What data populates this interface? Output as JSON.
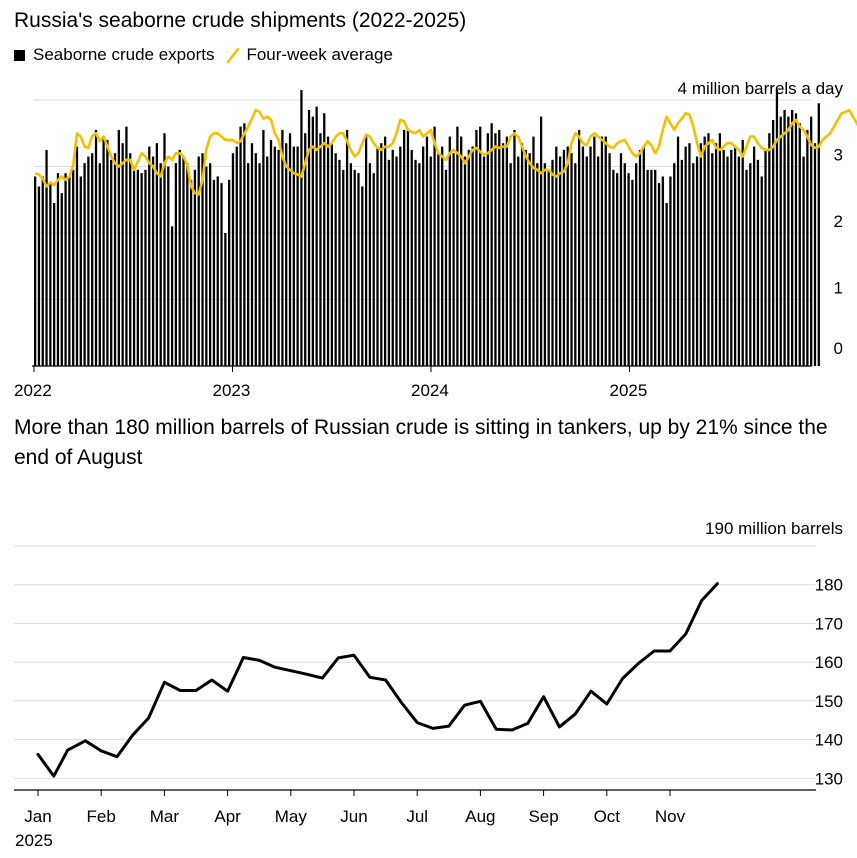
{
  "chart_data": [
    {
      "type": "bar",
      "title": "Russia's seaborne crude shipments (2022-2025)",
      "legend": {
        "bar_label": "Seaborne crude exports",
        "line_label": "Four-week average"
      },
      "unit_label": "4 million barrels a day",
      "ylim": [
        0,
        4
      ],
      "yticks": [
        "0",
        "1",
        "2",
        "3"
      ],
      "xticks": [
        "2022",
        "2023",
        "2024",
        "2025"
      ],
      "colors": {
        "bars": "#000000",
        "average": "#f5c000",
        "grid": "#dddddd"
      },
      "x_start": 2022.0,
      "weekly_values": [
        2.85,
        2.7,
        2.85,
        3.25,
        2.75,
        2.45,
        2.9,
        2.6,
        2.9,
        2.85,
        2.95,
        3.3,
        2.85,
        3.05,
        3.15,
        3.2,
        3.55,
        3.05,
        3.45,
        3.4,
        3.1,
        3.2,
        3.55,
        3.35,
        3.6,
        3.2,
        3.0,
        2.95,
        2.9,
        2.95,
        3.3,
        3.15,
        3.35,
        3.05,
        3.5,
        3.0,
        2.1,
        3.05,
        3.25,
        3.15,
        3.05,
        2.8,
        2.95,
        3.15,
        3.2,
        3.0,
        3.05,
        2.8,
        2.85,
        2.75,
        2.0,
        2.8,
        3.2,
        3.3,
        3.6,
        3.65,
        3.05,
        3.35,
        3.2,
        3.05,
        3.55,
        3.15,
        3.4,
        3.3,
        3.25,
        3.55,
        3.35,
        3.5,
        3.3,
        3.3,
        4.15,
        3.5,
        3.85,
        3.75,
        3.9,
        3.5,
        3.8,
        3.45,
        3.35,
        3.2,
        3.1,
        2.95,
        3.55,
        3.05,
        2.95,
        2.9,
        2.7,
        3.45,
        3.05,
        2.9,
        3.3,
        3.35,
        3.45,
        3.1,
        3.25,
        3.15,
        3.3,
        3.55,
        3.55,
        3.25,
        3.1,
        3.05,
        3.3,
        3.45,
        3.15,
        3.6,
        3.2,
        3.3,
        2.95,
        3.45,
        3.2,
        3.6,
        3.45,
        3.15,
        3.25,
        3.3,
        3.55,
        3.6,
        3.15,
        3.5,
        3.65,
        3.5,
        3.55,
        3.35,
        3.45,
        3.05,
        3.55,
        3.15,
        3.35,
        3.25,
        3.2,
        3.45,
        3.05,
        3.75,
        3.05,
        2.95,
        3.1,
        3.3,
        3.15,
        3.25,
        3.3,
        3.2,
        3.05,
        3.55,
        3.3,
        3.15,
        3.3,
        3.45,
        3.15,
        3.45,
        3.45,
        3.2,
        2.95,
        2.9,
        3.2,
        3.05,
        2.9,
        2.8,
        3.05,
        3.25,
        3.3,
        2.95,
        2.95,
        2.95,
        2.75,
        2.85,
        2.45,
        2.85,
        3.05,
        3.45,
        3.1,
        3.3,
        3.35,
        3.05,
        3.15,
        3.35,
        3.45,
        3.5,
        3.2,
        3.35,
        3.5,
        3.25,
        3.15,
        3.25,
        3.3,
        3.15,
        3.4,
        2.95,
        3.05,
        3.3,
        3.1,
        2.85,
        3.25,
        3.5,
        3.7,
        4.15,
        3.75,
        3.85,
        3.75,
        3.85,
        3.8,
        3.65,
        3.15,
        3.55,
        3.75,
        3.35,
        3.95
      ],
      "four_week_average": [
        2.9,
        2.88,
        2.82,
        2.7,
        2.76,
        2.72,
        2.8,
        2.85,
        2.8,
        2.85,
        3.02,
        3.5,
        3.45,
        3.3,
        3.28,
        3.46,
        3.5,
        3.38,
        3.45,
        3.3,
        3.15,
        3.05,
        3.0,
        3.05,
        3.1,
        3.1,
        2.95,
        3.08,
        3.2,
        3.15,
        3.05,
        3.0,
        2.9,
        2.85,
        3.05,
        3.15,
        3.1,
        3.2,
        3.2,
        3.15,
        3.02,
        2.7,
        2.6,
        2.58,
        2.8,
        3.25,
        3.45,
        3.5,
        3.5,
        3.45,
        3.4,
        3.4,
        3.4,
        3.35,
        3.38,
        3.5,
        3.6,
        3.72,
        3.85,
        3.82,
        3.72,
        3.75,
        3.7,
        3.5,
        3.4,
        3.15,
        3.0,
        2.95,
        2.9,
        2.88,
        2.85,
        3.05,
        3.25,
        3.3,
        3.25,
        3.3,
        3.35,
        3.3,
        3.35,
        3.45,
        3.5,
        3.5,
        3.38,
        3.25,
        3.15,
        3.2,
        3.35,
        3.48,
        3.45,
        3.35,
        3.28,
        3.25,
        3.3,
        3.3,
        3.35,
        3.5,
        3.7,
        3.68,
        3.55,
        3.52,
        3.5,
        3.55,
        3.45,
        3.5,
        3.55,
        3.35,
        3.2,
        3.15,
        3.1,
        3.2,
        3.25,
        3.2,
        3.15,
        3.05,
        3.15,
        3.25,
        3.28,
        3.22,
        3.18,
        3.2,
        3.25,
        3.3,
        3.28,
        3.3,
        3.3,
        3.45,
        3.5,
        3.45,
        3.3,
        3.15,
        3.05,
        2.98,
        2.95,
        2.9,
        2.95,
        2.95,
        2.88,
        2.85,
        2.9,
        2.92,
        3.05,
        3.35,
        3.5,
        3.45,
        3.35,
        3.32,
        3.45,
        3.5,
        3.45,
        3.4,
        3.35,
        3.3,
        3.28,
        3.35,
        3.38,
        3.4,
        3.3,
        3.2,
        3.15,
        3.2,
        3.3,
        3.38,
        3.32,
        3.2,
        3.3,
        3.55,
        3.75,
        3.65,
        3.55,
        3.65,
        3.72,
        3.8,
        3.78,
        3.6,
        3.35,
        3.15,
        3.3,
        3.35,
        3.4,
        3.28,
        3.25,
        3.3,
        3.35,
        3.35,
        3.3,
        3.25,
        3.15,
        3.3,
        3.45,
        3.45,
        3.35,
        3.28,
        3.25,
        3.25,
        3.3,
        3.4,
        3.45,
        3.5,
        3.55,
        3.65,
        3.7,
        3.6,
        3.55,
        3.45,
        3.32,
        3.28,
        3.3,
        3.4,
        3.45,
        3.5,
        3.6,
        3.7,
        3.8,
        3.82,
        3.85,
        3.75,
        3.65,
        3.55
      ]
    },
    {
      "type": "line",
      "title": "More than 180 million barrels of Russian crude is sitting in tankers, up by 21% since the end of August",
      "unit_label": "190 million barrels",
      "ylim": [
        127,
        190
      ],
      "yticks": [
        "130",
        "140",
        "150",
        "160",
        "170",
        "180"
      ],
      "months": [
        "Jan",
        "Feb",
        "Mar",
        "Apr",
        "May",
        "Jun",
        "Jul",
        "Aug",
        "Sep",
        "Oct",
        "Nov"
      ],
      "year_label": "2025",
      "colors": {
        "line": "#000000",
        "grid": "#dddddd"
      },
      "x_unit": "months since Jan 1, 2025",
      "x": [
        0.0,
        0.25,
        0.47,
        0.75,
        1.0,
        1.25,
        1.5,
        1.75,
        2.0,
        2.25,
        2.5,
        2.75,
        3.0,
        3.25,
        3.5,
        3.75,
        4.0,
        4.25,
        4.5,
        4.75,
        5.0,
        5.25,
        5.5,
        5.75,
        6.0,
        6.25,
        6.5,
        6.75,
        7.0,
        7.25,
        7.5,
        7.75,
        8.0,
        8.25,
        8.5,
        8.75,
        9.0,
        9.25,
        9.5,
        9.75,
        10.0,
        10.25,
        10.5,
        10.75
      ],
      "values": [
        136.2,
        130.6,
        137.3,
        139.7,
        137.1,
        135.6,
        141.2,
        145.6,
        154.8,
        152.7,
        152.7,
        155.4,
        152.5,
        161.2,
        160.5,
        158.7,
        157.8,
        156.9,
        155.9,
        161.1,
        161.8,
        156.1,
        155.4,
        149.6,
        144.4,
        142.9,
        143.5,
        148.9,
        149.9,
        142.7,
        142.5,
        144.2,
        151.1,
        143.3,
        146.6,
        152.5,
        149.2,
        155.8,
        159.7,
        162.9,
        162.9,
        167.3,
        175.9,
        180.3
      ]
    }
  ]
}
